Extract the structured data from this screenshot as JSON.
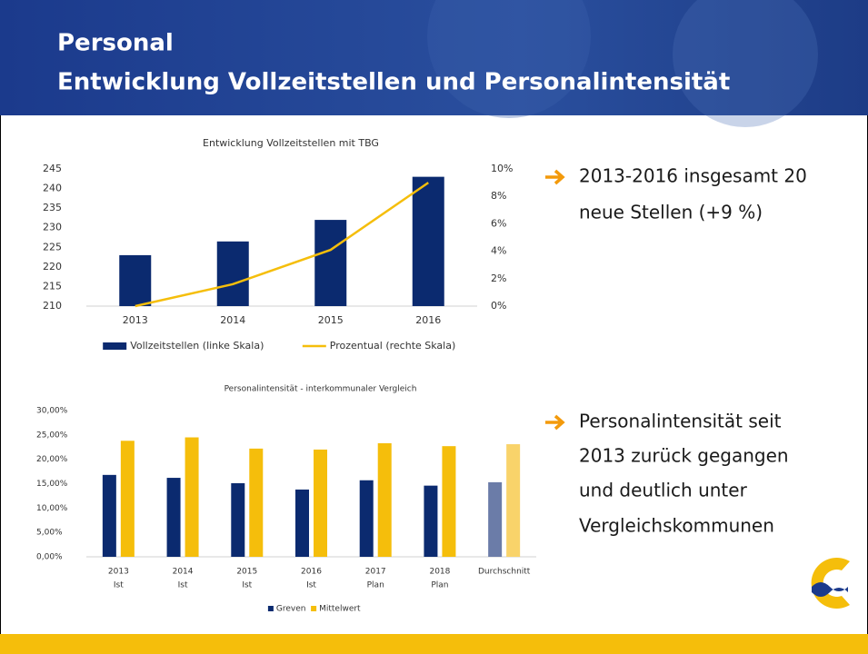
{
  "header": {
    "lines": [
      "Personal",
      "Entwicklung Vollzeitstellen und Personalintensität"
    ]
  },
  "bullets": [
    {
      "lines": [
        "2013-2016 insgesamt 20",
        "neue Stellen (+9 %)"
      ]
    },
    {
      "lines": [
        "Personalintensität seit",
        "2013 zurück gegangen",
        "und deutlich unter",
        "Vergleichskommunen"
      ]
    }
  ],
  "chart_data": [
    {
      "type": "combo",
      "title": "Entwicklung Vollzeitstellen mit TBG",
      "categories": [
        "2013",
        "2014",
        "2015",
        "2016"
      ],
      "series": [
        {
          "name": "Vollzeitstellen (linke Skala)",
          "color": "#0b2a6f",
          "type": "bar",
          "values": [
            223,
            226.5,
            232,
            243
          ]
        },
        {
          "name": "Prozentual (rechte Skala)",
          "color": "#f5be0b",
          "type": "line",
          "axis": "y2",
          "values": [
            0,
            1.6,
            4.1,
            9.0
          ]
        }
      ],
      "ylim": [
        210,
        245
      ],
      "yticks": [
        210,
        215,
        220,
        225,
        230,
        235,
        240,
        245
      ],
      "y2lim": [
        0,
        10
      ],
      "y2ticks": [
        {
          "value": 0,
          "label": "0%"
        },
        {
          "value": 2,
          "label": "2%"
        },
        {
          "value": 4,
          "label": "4%"
        },
        {
          "value": 6,
          "label": "6%"
        },
        {
          "value": 8,
          "label": "8%"
        },
        {
          "value": 10,
          "label": "10%"
        }
      ],
      "legend": "bottom",
      "grid": false
    },
    {
      "type": "bar",
      "title": "Personalintensität - interkommunaler Vergleich",
      "categories": [
        [
          "2013",
          "Ist"
        ],
        [
          "2014",
          "Ist"
        ],
        [
          "2015",
          "Ist"
        ],
        [
          "2016",
          "Ist"
        ],
        [
          "2017",
          "Plan"
        ],
        [
          "2018",
          "Plan"
        ],
        [
          "Durchschnitt"
        ]
      ],
      "series": [
        {
          "name": "Greven",
          "color": "#0b2a6f",
          "colors": [
            "#0b2a6f",
            "#0b2a6f",
            "#0b2a6f",
            "#0b2a6f",
            "#0b2a6f",
            "#0b2a6f",
            "#6b7ca8"
          ],
          "values": [
            16.8,
            16.2,
            15.1,
            13.8,
            15.7,
            14.6,
            15.3
          ]
        },
        {
          "name": "Mittelwert",
          "color": "#f5be0b",
          "colors": [
            "#f5be0b",
            "#f5be0b",
            "#f5be0b",
            "#f5be0b",
            "#f5be0b",
            "#f5be0b",
            "#f9d36a"
          ],
          "values": [
            23.8,
            24.5,
            22.2,
            22.0,
            23.3,
            22.7,
            23.1
          ]
        }
      ],
      "ylim": [
        0,
        30
      ],
      "yticks": [
        {
          "value": 0,
          "label": "0,00%"
        },
        {
          "value": 5,
          "label": "5,00%"
        },
        {
          "value": 10,
          "label": "10,00%"
        },
        {
          "value": 15,
          "label": "15,00%"
        },
        {
          "value": 20,
          "label": "20,00%"
        },
        {
          "value": 25,
          "label": "25,00%"
        },
        {
          "value": 30,
          "label": "30,00%"
        }
      ],
      "legend": "bottom",
      "grid": false
    }
  ]
}
